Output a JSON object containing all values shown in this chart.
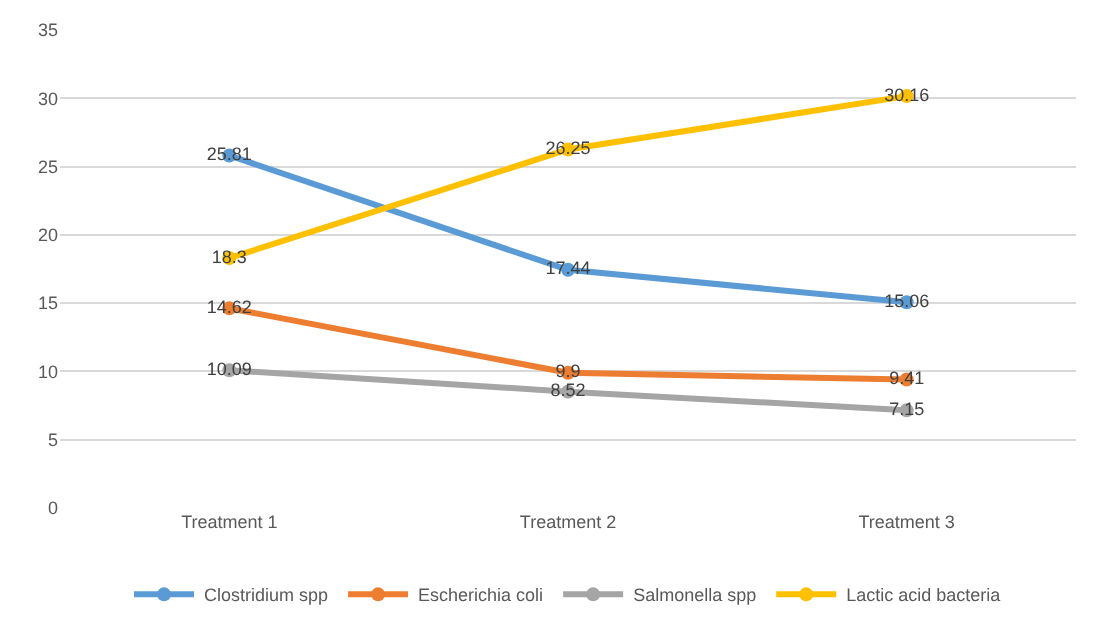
{
  "chart_data": {
    "type": "line",
    "categories": [
      "Treatment 1",
      "Treatment 2",
      "Treatment 3"
    ],
    "series": [
      {
        "name": "Clostridium spp",
        "color": "#5b9bd5",
        "values": [
          25.81,
          17.44,
          15.06
        ]
      },
      {
        "name": "Escherichia coli",
        "color": "#ed7d31",
        "values": [
          14.62,
          9.9,
          9.41
        ]
      },
      {
        "name": "Salmonella spp",
        "color": "#a5a5a5",
        "values": [
          10.09,
          8.52,
          7.15
        ]
      },
      {
        "name": "Lactic acid bacteria",
        "color": "#ffc000",
        "values": [
          18.3,
          26.25,
          30.16
        ]
      }
    ],
    "ylim": [
      0,
      35
    ],
    "yticks": [
      0,
      5,
      10,
      15,
      20,
      25,
      30,
      35
    ],
    "grid": "y",
    "legend": "bottom",
    "marker": "circle",
    "line_style": "solid",
    "data_labels": true
  }
}
